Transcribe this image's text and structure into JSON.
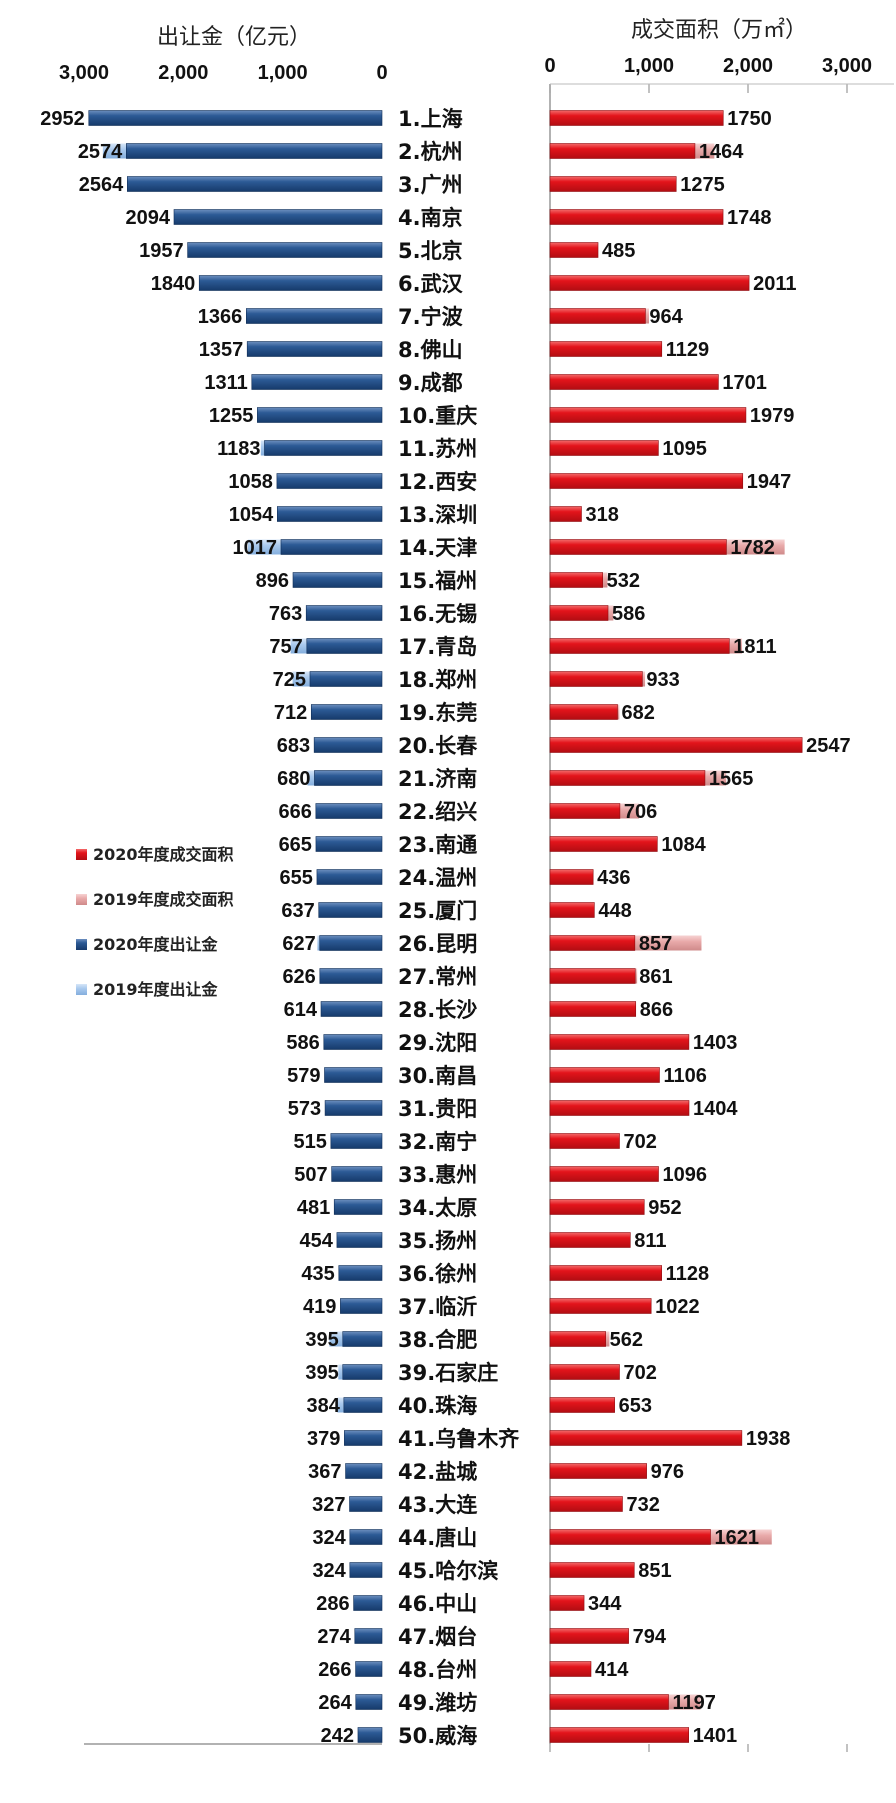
{
  "chart_data": {
    "type": "bar",
    "colors": {
      "area_2020": "#e3141b",
      "area_2019": "#e9aaaa",
      "fee_2020": "#1e4a82",
      "fee_2019": "#a9c7ea"
    },
    "left": {
      "title": "出让金（亿元）",
      "xlim": [
        0,
        3000
      ],
      "ticks": [
        3000,
        2000,
        1000,
        0
      ],
      "tick_labels": [
        "3,000",
        "2,000",
        "1,000",
        "0"
      ],
      "direction": "reversed"
    },
    "right": {
      "title": "成交面积（万㎡）",
      "xlim": [
        0,
        3000
      ],
      "ticks": [
        0,
        1000,
        2000,
        3000
      ],
      "tick_labels": [
        "0",
        "1,000",
        "2,000",
        "3,000"
      ]
    },
    "legend": [
      {
        "label": "2020年度成交面积",
        "color_key": "area_2020"
      },
      {
        "label": "2019年度成交面积",
        "color_key": "area_2019"
      },
      {
        "label": "2020年度出让金",
        "color_key": "fee_2020"
      },
      {
        "label": "2019年度出让金",
        "color_key": "fee_2019"
      }
    ],
    "categories": [
      "1.上海",
      "2.杭州",
      "3.广州",
      "4.南京",
      "5.北京",
      "6.武汉",
      "7.宁波",
      "8.佛山",
      "9.成都",
      "10.重庆",
      "11.苏州",
      "12.西安",
      "13.深圳",
      "14.天津",
      "15.福州",
      "16.无锡",
      "17.青岛",
      "18.郑州",
      "19.东莞",
      "20.长春",
      "21.济南",
      "22.绍兴",
      "23.南通",
      "24.温州",
      "25.厦门",
      "26.昆明",
      "27.常州",
      "28.长沙",
      "29.沈阳",
      "30.南昌",
      "31.贵阳",
      "32.南宁",
      "33.惠州",
      "34.太原",
      "35.扬州",
      "36.徐州",
      "37.临沂",
      "38.合肥",
      "39.石家庄",
      "40.珠海",
      "41.乌鲁木齐",
      "42.盐城",
      "43.大连",
      "44.唐山",
      "45.哈尔滨",
      "46.中山",
      "47.烟台",
      "48.台州",
      "49.潍坊",
      "50.威海"
    ],
    "series": [
      {
        "name": "2020年度出让金",
        "values": [
          2952,
          2574,
          2564,
          2094,
          1957,
          1840,
          1366,
          1357,
          1311,
          1255,
          1183,
          1058,
          1054,
          1017,
          896,
          763,
          757,
          725,
          712,
          683,
          680,
          666,
          665,
          655,
          637,
          627,
          626,
          614,
          586,
          579,
          573,
          515,
          507,
          481,
          454,
          435,
          419,
          395,
          395,
          384,
          379,
          367,
          327,
          324,
          324,
          286,
          274,
          266,
          264,
          242
        ]
      },
      {
        "name": "2019年度出让金",
        "values": [
          2952,
          2810,
          2564,
          2094,
          1957,
          1840,
          1366,
          1357,
          1311,
          1255,
          1220,
          1058,
          1054,
          1350,
          896,
          763,
          920,
          900,
          712,
          683,
          750,
          666,
          665,
          655,
          637,
          650,
          626,
          614,
          586,
          579,
          573,
          515,
          507,
          481,
          454,
          435,
          419,
          530,
          440,
          450,
          379,
          367,
          327,
          324,
          324,
          286,
          274,
          266,
          264,
          242
        ]
      },
      {
        "name": "2020年度成交面积",
        "values": [
          1750,
          1464,
          1275,
          1748,
          485,
          2011,
          964,
          1129,
          1701,
          1979,
          1095,
          1947,
          318,
          1782,
          532,
          586,
          1811,
          933,
          682,
          2547,
          1565,
          706,
          1084,
          436,
          448,
          857,
          861,
          866,
          1403,
          1106,
          1404,
          702,
          1096,
          952,
          811,
          1128,
          1022,
          562,
          702,
          653,
          1938,
          976,
          732,
          1621,
          851,
          344,
          794,
          414,
          1197,
          1401
        ]
      },
      {
        "name": "2019年度成交面积",
        "values": [
          1750,
          1660,
          1275,
          1748,
          485,
          2011,
          1000,
          1129,
          1701,
          1979,
          1095,
          1947,
          318,
          2370,
          580,
          640,
          1940,
          960,
          700,
          2547,
          1780,
          900,
          1084,
          436,
          448,
          1530,
          880,
          866,
          1403,
          1106,
          1404,
          702,
          1096,
          952,
          811,
          1128,
          1022,
          600,
          702,
          653,
          1938,
          976,
          732,
          2240,
          851,
          344,
          794,
          414,
          1520,
          1401
        ]
      }
    ]
  }
}
